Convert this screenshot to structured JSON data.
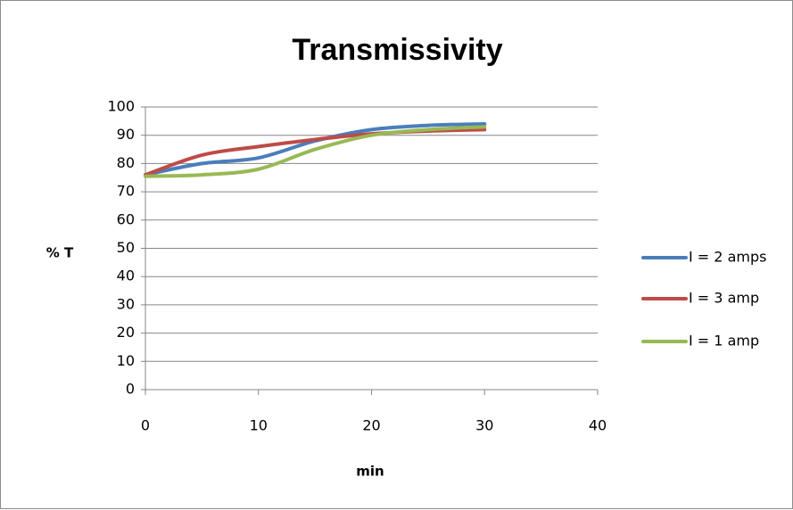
{
  "chart_data": {
    "type": "line",
    "title": "Transmissivity",
    "xlabel": "min",
    "ylabel": "% T",
    "xlim": [
      0,
      40
    ],
    "ylim": [
      0,
      100
    ],
    "xticks": [
      0,
      10,
      20,
      30,
      40
    ],
    "yticks": [
      0,
      10,
      20,
      30,
      40,
      50,
      60,
      70,
      80,
      90,
      100
    ],
    "grid": "horizontal",
    "legend": "right",
    "series": [
      {
        "name": "I = 2 amps",
        "color": "#4a7ebb",
        "x": [
          0,
          5,
          10,
          15,
          20,
          25,
          30
        ],
        "y": [
          76,
          80,
          82,
          88,
          92,
          93.5,
          94
        ]
      },
      {
        "name": "I = 3 amp",
        "color": "#be4b48",
        "x": [
          0,
          5,
          10,
          15,
          20,
          25,
          30
        ],
        "y": [
          76,
          83,
          86,
          88.5,
          90.5,
          91.5,
          92
        ]
      },
      {
        "name": "I = 1 amp",
        "color": "#98b954",
        "x": [
          0,
          5,
          10,
          15,
          20,
          25,
          30
        ],
        "y": [
          75.5,
          76,
          78,
          85,
          90,
          92,
          93
        ]
      }
    ]
  }
}
